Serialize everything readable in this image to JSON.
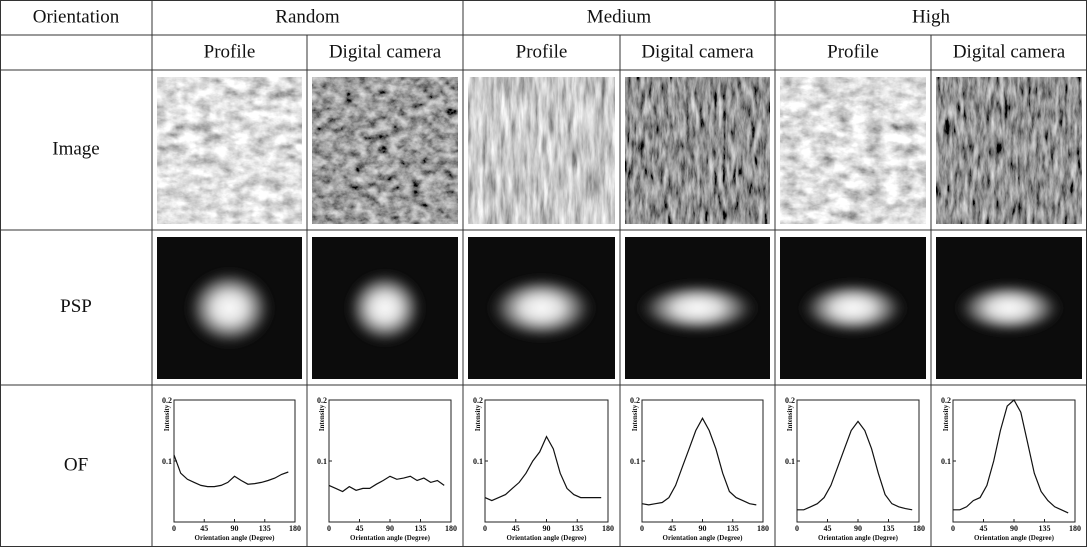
{
  "table": {
    "corner": "Orientation",
    "groups": [
      "Random",
      "Medium",
      "High"
    ],
    "subheaders": [
      "Profile",
      "Digital camera",
      "Profile",
      "Digital camera",
      "Profile",
      "Digital camera"
    ],
    "rows": [
      "Image",
      "PSP",
      "OF"
    ]
  },
  "of_charts": {
    "type": "line",
    "x_label": "Orientation angle (Degree)",
    "y_label": "Intensity",
    "x": [
      0,
      10,
      20,
      30,
      40,
      50,
      60,
      70,
      80,
      90,
      100,
      110,
      120,
      130,
      140,
      150,
      160,
      170
    ],
    "xlim": [
      0,
      180
    ],
    "ylim": [
      0,
      0.2
    ],
    "xticks": [
      0,
      45,
      90,
      135,
      180
    ],
    "yticks": [
      0.1,
      0.2
    ],
    "color": "#111111",
    "series": [
      {
        "values": [
          0.11,
          0.08,
          0.07,
          0.065,
          0.06,
          0.058,
          0.058,
          0.06,
          0.065,
          0.075,
          0.068,
          0.062,
          0.063,
          0.065,
          0.068,
          0.072,
          0.078,
          0.082
        ]
      },
      {
        "values": [
          0.06,
          0.055,
          0.05,
          0.058,
          0.052,
          0.055,
          0.055,
          0.062,
          0.068,
          0.075,
          0.07,
          0.072,
          0.075,
          0.068,
          0.072,
          0.065,
          0.068,
          0.06
        ]
      },
      {
        "values": [
          0.04,
          0.035,
          0.04,
          0.045,
          0.055,
          0.065,
          0.08,
          0.1,
          0.115,
          0.14,
          0.12,
          0.08,
          0.055,
          0.045,
          0.04,
          0.04,
          0.04,
          0.04
        ]
      },
      {
        "values": [
          0.03,
          0.028,
          0.03,
          0.032,
          0.04,
          0.06,
          0.09,
          0.12,
          0.15,
          0.17,
          0.15,
          0.12,
          0.08,
          0.05,
          0.04,
          0.035,
          0.03,
          0.028
        ]
      },
      {
        "values": [
          0.02,
          0.02,
          0.025,
          0.03,
          0.04,
          0.06,
          0.09,
          0.12,
          0.15,
          0.165,
          0.15,
          0.12,
          0.08,
          0.045,
          0.03,
          0.025,
          0.022,
          0.02
        ]
      },
      {
        "values": [
          0.02,
          0.02,
          0.025,
          0.035,
          0.04,
          0.06,
          0.1,
          0.15,
          0.19,
          0.2,
          0.18,
          0.13,
          0.08,
          0.05,
          0.035,
          0.025,
          0.02,
          0.015
        ]
      }
    ]
  }
}
